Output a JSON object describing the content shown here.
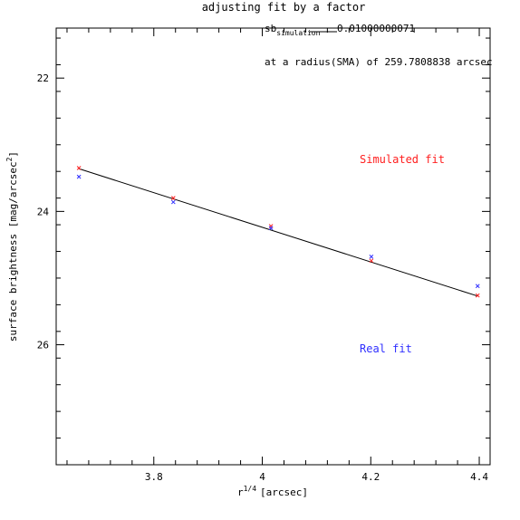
{
  "chart_data": {
    "type": "scatter",
    "title": "adjusting fit by a factor",
    "xlabel": "r",
    "xlabel_sup": "1/4",
    "xlabel_unit": "[arcsec]",
    "ylabel": "surface brightness [mag/arcsec",
    "ylabel_sup": "2",
    "ylabel_end": "]",
    "xlim": [
      3.62,
      4.42
    ],
    "ylim": [
      27.8,
      21.25
    ],
    "y_inverted": true,
    "x_ticks": [
      3.8,
      4,
      4.2,
      4.4
    ],
    "x_tick_labels": [
      "3.8",
      "4",
      "4.2",
      "4.4"
    ],
    "y_ticks": [
      22,
      24,
      26
    ],
    "y_tick_labels": [
      "22",
      "24",
      "26"
    ],
    "annotations": {
      "sb_label": "sb",
      "sb_sub": "simulation",
      "sb_value": "0.01000000071",
      "radius_text": "at a radius(SMA) of 259.7808838 arcsec"
    },
    "series": [
      {
        "name": "Simulated fit",
        "color": "#ff2020",
        "marker": "x",
        "x": [
          3.662,
          3.836,
          4.016,
          4.201,
          4.397
        ],
        "y": [
          23.35,
          23.8,
          24.22,
          24.74,
          25.26
        ]
      },
      {
        "name": "Real fit",
        "color": "#3030ff",
        "marker": "x",
        "x": [
          3.662,
          3.836,
          4.016,
          4.201,
          4.397
        ],
        "y": [
          23.48,
          23.86,
          24.25,
          24.68,
          25.12
        ]
      }
    ],
    "fit_line": {
      "color": "#000000",
      "x": [
        3.662,
        4.397
      ],
      "y": [
        23.36,
        25.27
      ]
    },
    "legend": {
      "simulated_label": "Simulated fit",
      "real_label": "Real fit"
    },
    "grid": false
  }
}
